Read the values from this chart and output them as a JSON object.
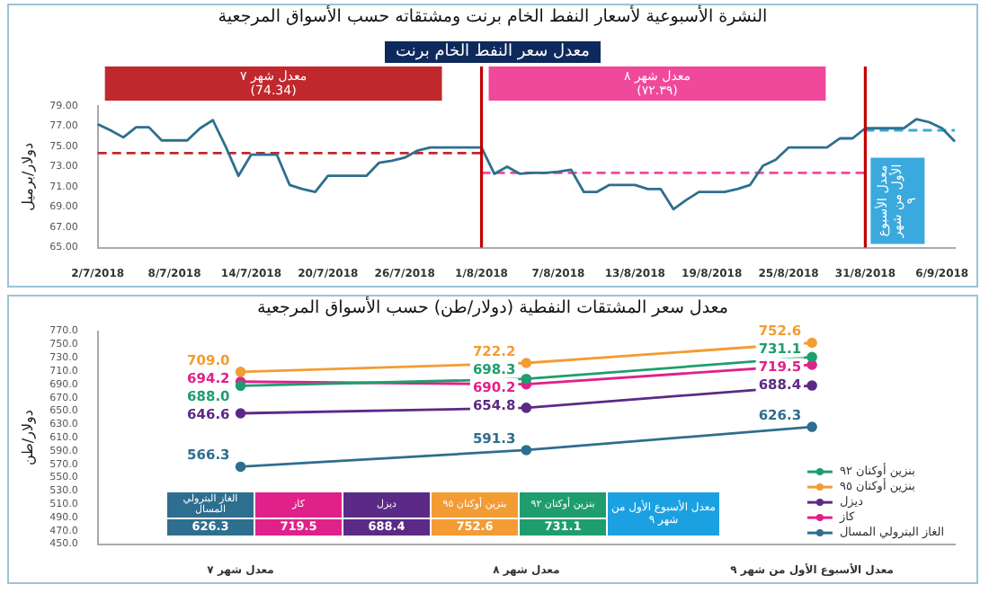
{
  "chart_data": [
    {
      "type": "line",
      "title": "النشرة الأسبوعية لأسعار النفط الخام برنت ومشتقاته حسب الأسواق المرجعية",
      "subtitle": "معدل سعر النفط الخام برنت",
      "ylabel": "دولار/برميل",
      "categories": [
        "2/7/2018",
        null,
        null,
        null,
        null,
        null,
        "8/7/2018",
        null,
        null,
        null,
        null,
        null,
        "14/7/2018",
        null,
        null,
        null,
        null,
        null,
        "20/7/2018",
        null,
        null,
        null,
        null,
        null,
        "26/7/2018",
        null,
        null,
        null,
        null,
        null,
        "1/8/2018",
        null,
        null,
        null,
        null,
        null,
        "7/8/2018",
        null,
        null,
        null,
        null,
        null,
        "13/8/2018",
        null,
        null,
        null,
        null,
        null,
        "19/8/2018",
        null,
        null,
        null,
        null,
        null,
        "25/8/2018",
        null,
        null,
        null,
        null,
        null,
        "31/8/2018",
        null,
        null,
        null,
        null,
        null,
        "6/9/2018",
        null
      ],
      "series": [
        {
          "color": "#2e6f8e",
          "values": [
            77.2,
            76.6,
            75.9,
            76.9,
            76.9,
            75.6,
            75.6,
            75.6,
            76.8,
            77.6,
            75.0,
            72.1,
            74.2,
            74.2,
            74.2,
            71.2,
            70.8,
            70.5,
            72.1,
            72.1,
            72.1,
            72.1,
            73.4,
            73.6,
            73.9,
            74.6,
            74.9,
            74.9,
            74.9,
            74.9,
            74.9,
            72.3,
            73.0,
            72.3,
            72.4,
            72.4,
            72.5,
            72.7,
            70.5,
            70.5,
            71.2,
            71.2,
            71.2,
            70.8,
            70.8,
            68.8,
            69.7,
            70.5,
            70.5,
            70.5,
            70.8,
            71.2,
            73.1,
            73.7,
            74.9,
            74.9,
            74.9,
            74.9,
            75.8,
            75.8,
            76.8,
            76.8,
            76.8,
            76.8,
            77.7,
            77.4,
            76.8,
            75.5
          ]
        },
        {
          "color": "#c0282d",
          "line_style": "dashed",
          "values": [
            74.34,
            74.34,
            74.34,
            74.34,
            74.34,
            74.34,
            74.34,
            74.34,
            74.34,
            74.34,
            74.34,
            74.34,
            74.34,
            74.34,
            74.34,
            74.34,
            74.34,
            74.34,
            74.34,
            74.34,
            74.34,
            74.34,
            74.34,
            74.34,
            74.34,
            74.34,
            74.34,
            74.34,
            74.34,
            74.34,
            74.34,
            null,
            null,
            null,
            null,
            null,
            null,
            null,
            null,
            null,
            null,
            null,
            null,
            null,
            null,
            null,
            null,
            null,
            null,
            null,
            null,
            null,
            null,
            null,
            null,
            null,
            null,
            null,
            null,
            null,
            null,
            null,
            null,
            null,
            null,
            null,
            null,
            null
          ]
        },
        {
          "color": "#f0489a",
          "line_style": "dashed",
          "values": [
            null,
            null,
            null,
            null,
            null,
            null,
            null,
            null,
            null,
            null,
            null,
            null,
            null,
            null,
            null,
            null,
            null,
            null,
            null,
            null,
            null,
            null,
            null,
            null,
            null,
            null,
            null,
            null,
            null,
            null,
            72.39,
            72.39,
            72.39,
            72.39,
            72.39,
            72.39,
            72.39,
            72.39,
            72.39,
            72.39,
            72.39,
            72.39,
            72.39,
            72.39,
            72.39,
            72.39,
            72.39,
            72.39,
            72.39,
            72.39,
            72.39,
            72.39,
            72.39,
            72.39,
            72.39,
            72.39,
            72.39,
            72.39,
            72.39,
            72.39,
            72.39,
            null,
            null,
            null,
            null,
            null,
            null,
            null
          ]
        },
        {
          "color": "#3aa9de",
          "line_style": "dashed",
          "values": [
            null,
            null,
            null,
            null,
            null,
            null,
            null,
            null,
            null,
            null,
            null,
            null,
            null,
            null,
            null,
            null,
            null,
            null,
            null,
            null,
            null,
            null,
            null,
            null,
            null,
            null,
            null,
            null,
            null,
            null,
            null,
            null,
            null,
            null,
            null,
            null,
            null,
            null,
            null,
            null,
            null,
            null,
            null,
            null,
            null,
            null,
            null,
            null,
            null,
            null,
            null,
            null,
            null,
            null,
            null,
            null,
            null,
            null,
            null,
            null,
            76.6,
            76.6,
            76.6,
            76.6,
            76.6,
            76.6,
            76.6,
            76.6
          ]
        }
      ],
      "ylim": [
        65,
        79
      ],
      "yticks": [
        {
          "value": 65,
          "label": "65.00"
        },
        {
          "value": 67,
          "label": "67.00"
        },
        {
          "value": 69,
          "label": "69.00"
        },
        {
          "value": 71,
          "label": "71.00"
        },
        {
          "value": 73,
          "label": "73.00"
        },
        {
          "value": 75,
          "label": "75.00"
        },
        {
          "value": 77,
          "label": "77.00"
        },
        {
          "value": 79,
          "label": "79.00"
        }
      ],
      "ref_lines": [
        {
          "axis": "x",
          "value": "1/8/2018",
          "color": "#c00000"
        },
        {
          "axis": "x",
          "value": "31/8/2018",
          "color": "#c00000"
        }
      ],
      "annotations": [
        "معدل شهر ٧\n(74.34)",
        "معدل شهر ٨\n(٧٢.٣٩)",
        "معدل الأسبوع الأول من شهر ٩"
      ]
    },
    {
      "type": "line",
      "title": "معدل سعر المشتقات النفطية (دولار/طن) حسب الأسواق المرجعية",
      "ylabel": "دولار/طن",
      "categories": [
        "معدل شهر ٧",
        "معدل شهر ٨",
        "معدل الأسبوع الأول من شهر ٩"
      ],
      "series": [
        {
          "name": "بنزين أوكتان ٩٢",
          "color": "#1e9e6e",
          "values": [
            688.0,
            698.3,
            731.1
          ],
          "value_labels": [
            "688.0",
            "698.3",
            "731.1"
          ]
        },
        {
          "name": "بنزين أوكتان ٩٥",
          "color": "#f39c34",
          "values": [
            709.0,
            722.2,
            752.6
          ],
          "value_labels": [
            "709.0",
            "722.2",
            "752.6"
          ]
        },
        {
          "name": "ديزل",
          "color": "#5b2a86",
          "values": [
            646.6,
            654.8,
            688.4
          ],
          "value_labels": [
            "646.6",
            "654.8",
            "688.4"
          ]
        },
        {
          "name": "كاز",
          "color": "#e0218a",
          "values": [
            694.2,
            690.2,
            719.5
          ],
          "value_labels": [
            "694.2",
            "690.2",
            "719.5"
          ]
        },
        {
          "name": "الغاز البترولي المسال",
          "color": "#2e6e8e",
          "values": [
            566.3,
            591.3,
            626.3
          ],
          "value_labels": [
            "566.3",
            "591.3",
            "626.3"
          ]
        }
      ],
      "ylim": [
        450,
        770
      ],
      "yticks": [
        {
          "value": 450,
          "label": "450.0"
        },
        {
          "value": 470,
          "label": "470.0"
        },
        {
          "value": 490,
          "label": "490.0"
        },
        {
          "value": 510,
          "label": "510.0"
        },
        {
          "value": 530,
          "label": "530.0"
        },
        {
          "value": 550,
          "label": "550.0"
        },
        {
          "value": 570,
          "label": "570.0"
        },
        {
          "value": 590,
          "label": "590.0"
        },
        {
          "value": 610,
          "label": "610.0"
        },
        {
          "value": 630,
          "label": "630.0"
        },
        {
          "value": 650,
          "label": "650.0"
        },
        {
          "value": 670,
          "label": "670.0"
        },
        {
          "value": 690,
          "label": "690.0"
        },
        {
          "value": 710,
          "label": "710.0"
        },
        {
          "value": 730,
          "label": "730.0"
        },
        {
          "value": 750,
          "label": "750.0"
        },
        {
          "value": 770,
          "label": "770.0"
        }
      ],
      "marker": "circle",
      "legend": "bottom right",
      "annotations": [
        "معدل الأسبوع الأول من شهر ٩"
      ]
    }
  ]
}
